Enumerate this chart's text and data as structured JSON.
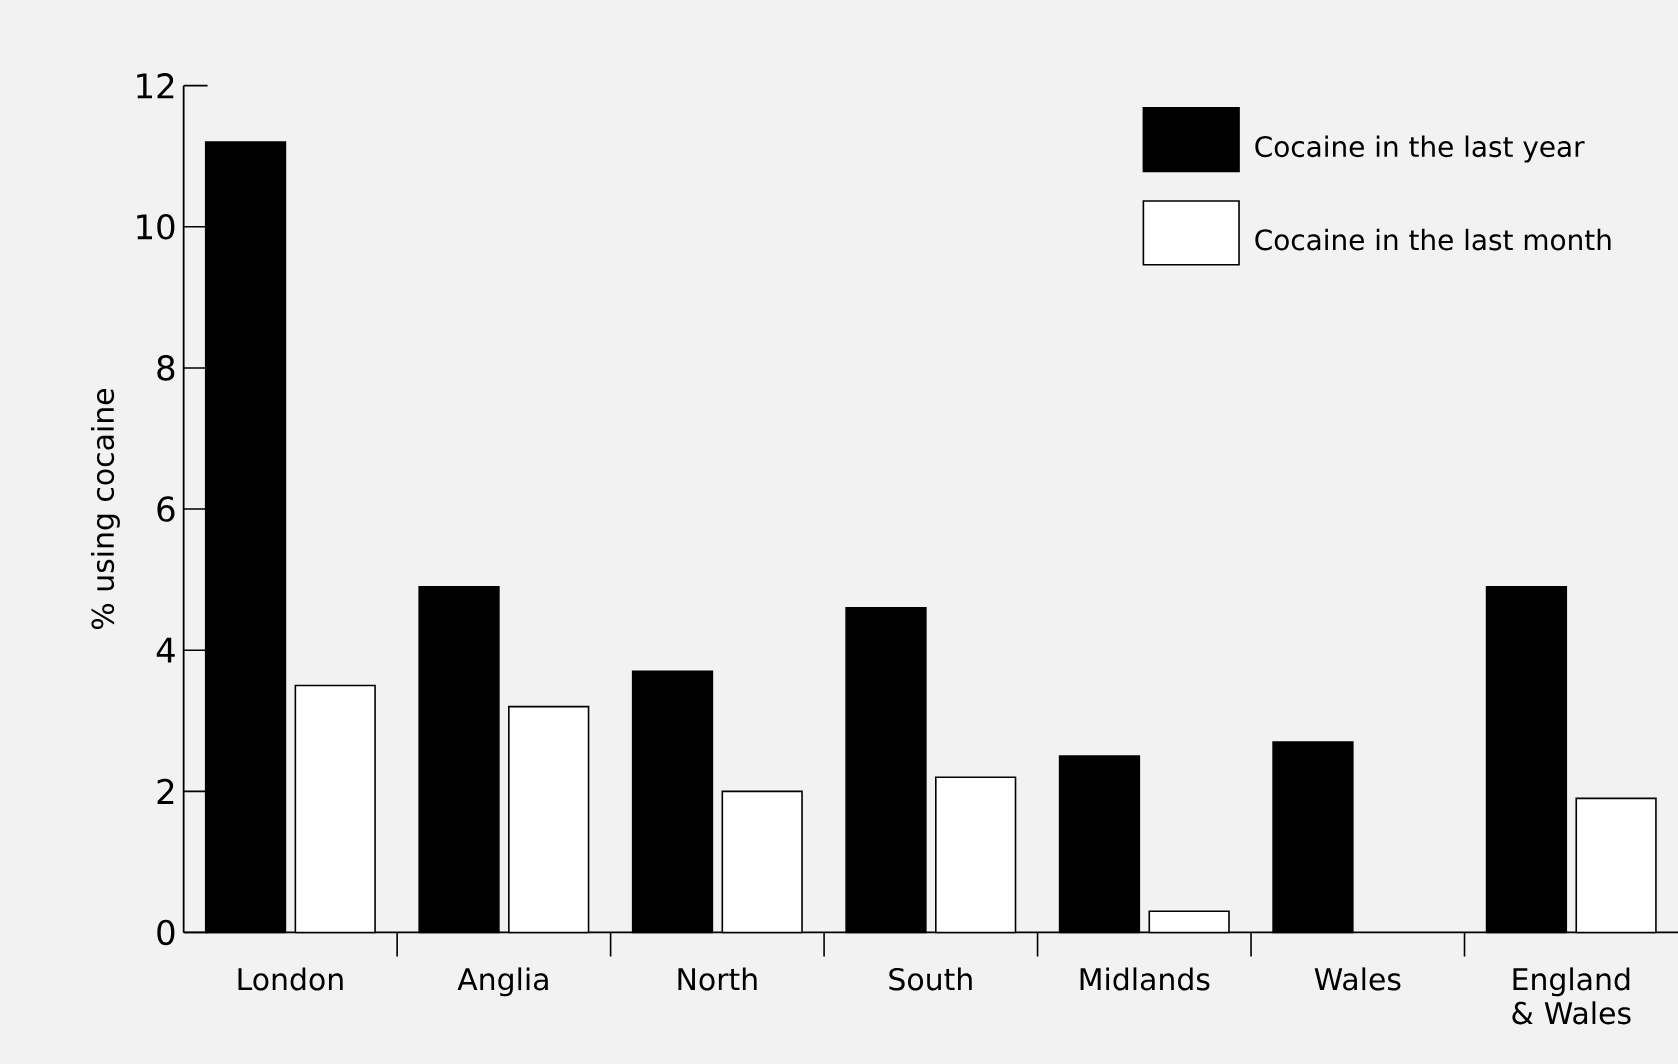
{
  "chart_data": {
    "type": "bar",
    "categories": [
      "London",
      "Anglia",
      "North",
      "South",
      "Midlands",
      "Wales",
      "England & Wales"
    ],
    "series": [
      {
        "name": "Cocaine in the last year",
        "color": "#000000",
        "values": [
          11.2,
          4.9,
          3.7,
          4.6,
          2.5,
          2.7,
          4.9
        ]
      },
      {
        "name": "Cocaine in the last month",
        "color": "#ffffff",
        "values": [
          3.5,
          3.2,
          2.0,
          2.2,
          0.3,
          0,
          1.9
        ]
      }
    ],
    "ylabel": "% using cocaine",
    "ylim": [
      0,
      12
    ],
    "yticks": [
      0,
      2,
      4,
      6,
      8,
      10,
      12
    ],
    "legend": "top right",
    "grid": false
  }
}
